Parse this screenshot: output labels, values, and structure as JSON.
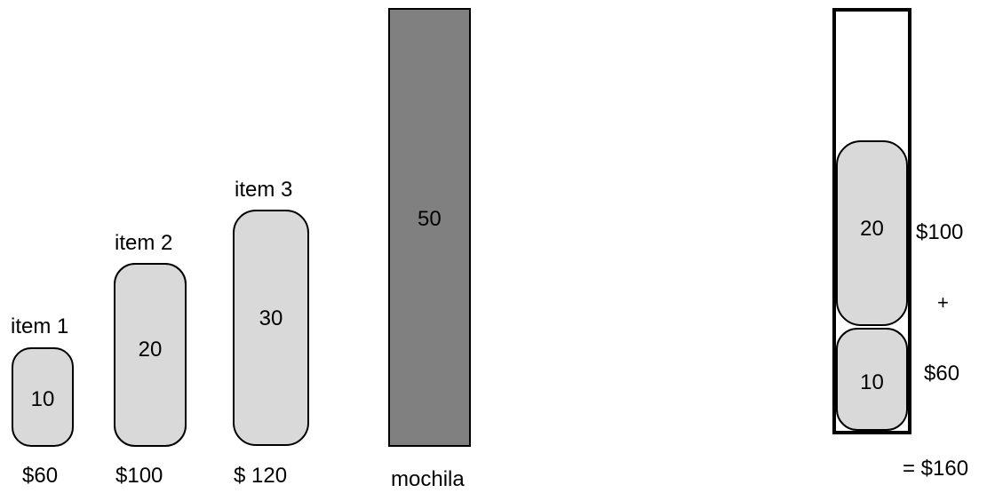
{
  "items": [
    {
      "name": "item 1",
      "weight": "10",
      "price": "$60"
    },
    {
      "name": "item 2",
      "weight": "20",
      "price": "$100"
    },
    {
      "name": "item 3",
      "weight": "30",
      "price": "$ 120"
    }
  ],
  "knapsack": {
    "capacity": "50",
    "label": "mochila"
  },
  "solution": {
    "packed": [
      {
        "weight": "20",
        "price": "$100"
      },
      {
        "weight": "10",
        "price": "$60"
      }
    ],
    "plus": "+",
    "total": "= $160"
  },
  "colors": {
    "item_fill": "#d9d9d9",
    "knapsack_fill": "#808080",
    "outline": "#000000"
  }
}
